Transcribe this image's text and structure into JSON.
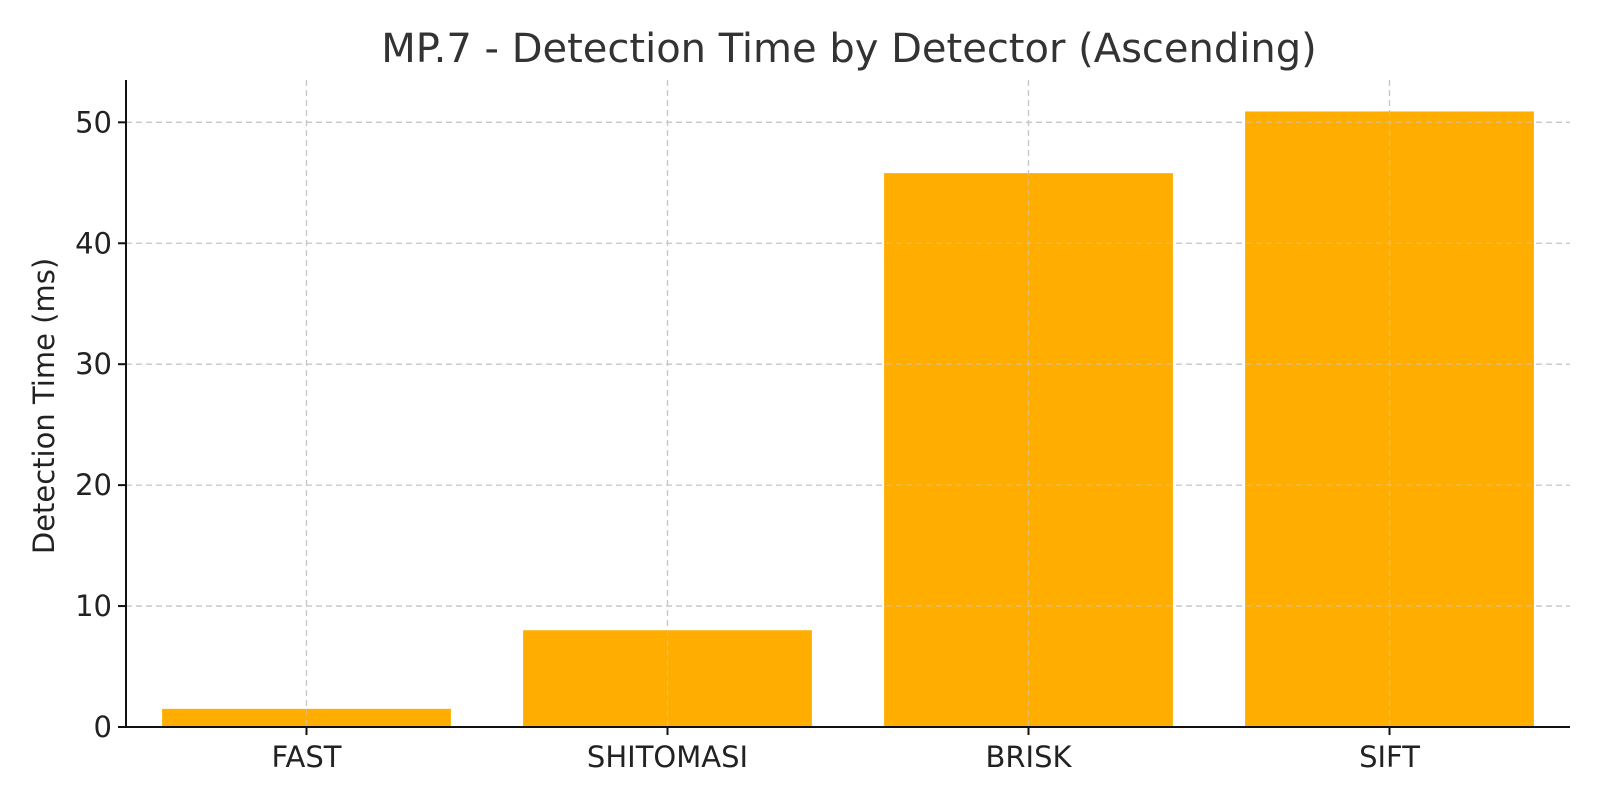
{
  "chart_data": {
    "type": "bar",
    "title": "MP.7 - Detection Time by Detector (Ascending)",
    "xlabel": "",
    "ylabel": "Detection Time (ms)",
    "categories": [
      "FAST",
      "SHITOMASI",
      "BRISK",
      "SIFT"
    ],
    "values": [
      1.5,
      8.0,
      45.8,
      50.9
    ],
    "ylim": [
      0,
      53.5
    ],
    "yticks": [
      0,
      10,
      20,
      30,
      40,
      50
    ],
    "grid": true,
    "bar_color": "#FFAE00",
    "legend": "none"
  }
}
